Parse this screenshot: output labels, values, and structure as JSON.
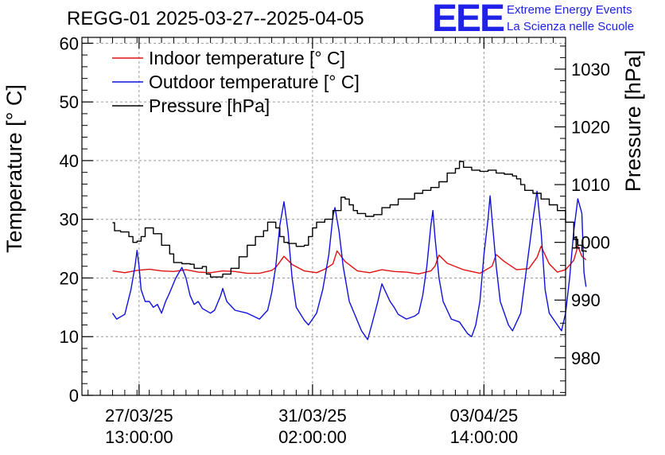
{
  "header": {
    "title": "REGG-01 2025-03-27--2025-04-05",
    "logo_text": "EEE",
    "logo_line1": "Extreme Energy Events",
    "logo_line2": "La Scienza nelle Scuole"
  },
  "colors": {
    "indoor": "#e01010",
    "outdoor": "#1010e0",
    "pressure": "#000000",
    "grid": "#9a9a9a",
    "logo": "#1f22e6"
  },
  "chart_data": {
    "type": "line",
    "title": "REGG-01 2025-03-27--2025-04-05",
    "xlabel": "",
    "ylabel": "Temperature [° C]",
    "y2label": "Pressure [hPa]",
    "x_unit": "hours since 27/03/25 00:00",
    "xlim": [
      -15,
      222
    ],
    "ylim": [
      0,
      61
    ],
    "y2lim": [
      973.5,
      1035.5
    ],
    "grid": true,
    "legend_position": "top-left",
    "x_ticks": [
      {
        "x": 13,
        "line1": "27/03/25",
        "line2": "13:00:00"
      },
      {
        "x": 98,
        "line1": "31/03/25",
        "line2": "02:00:00"
      },
      {
        "x": 182,
        "line1": "03/04/25",
        "line2": "14:00:00"
      }
    ],
    "y_ticks": [
      0,
      10,
      20,
      30,
      40,
      50,
      60
    ],
    "y2_ticks": [
      980,
      990,
      1000,
      1010,
      1020,
      1030
    ],
    "series": [
      {
        "name": "Indoor temperature [° C]",
        "axis": "left",
        "points": [
          [
            0,
            21.2
          ],
          [
            6,
            20.9
          ],
          [
            12,
            21.3
          ],
          [
            18,
            21.5
          ],
          [
            24,
            21.2
          ],
          [
            30,
            21.1
          ],
          [
            36,
            21.4
          ],
          [
            42,
            21.0
          ],
          [
            48,
            20.9
          ],
          [
            54,
            21.2
          ],
          [
            60,
            21.1
          ],
          [
            66,
            20.8
          ],
          [
            72,
            20.8
          ],
          [
            78,
            21.3
          ],
          [
            80,
            21.8
          ],
          [
            84,
            23.7
          ],
          [
            88,
            22.3
          ],
          [
            94,
            21.2
          ],
          [
            100,
            20.9
          ],
          [
            104,
            21.5
          ],
          [
            108,
            22.4
          ],
          [
            110,
            24.6
          ],
          [
            114,
            22.8
          ],
          [
            120,
            21.2
          ],
          [
            126,
            20.9
          ],
          [
            132,
            21.4
          ],
          [
            138,
            21.1
          ],
          [
            144,
            21.0
          ],
          [
            150,
            20.7
          ],
          [
            156,
            21.2
          ],
          [
            158,
            22.0
          ],
          [
            160,
            23.9
          ],
          [
            164,
            22.5
          ],
          [
            172,
            21.4
          ],
          [
            180,
            20.8
          ],
          [
            186,
            22.0
          ],
          [
            188,
            24.0
          ],
          [
            192,
            22.8
          ],
          [
            198,
            21.4
          ],
          [
            204,
            21.6
          ],
          [
            208,
            23.5
          ],
          [
            210,
            25.4
          ],
          [
            214,
            22.4
          ],
          [
            218,
            21.0
          ],
          [
            222,
            21.4
          ],
          [
            226,
            23.0
          ],
          [
            228,
            25.4
          ],
          [
            230,
            23.7
          ],
          [
            232,
            23.1
          ]
        ]
      },
      {
        "name": "Outdoor temperature [° C]",
        "axis": "left",
        "points": [
          [
            0,
            14.0
          ],
          [
            2,
            13.0
          ],
          [
            6,
            13.8
          ],
          [
            9,
            18.0
          ],
          [
            11,
            22.0
          ],
          [
            12,
            24.7
          ],
          [
            13,
            22.0
          ],
          [
            14,
            18.0
          ],
          [
            16,
            16.0
          ],
          [
            18,
            16.0
          ],
          [
            20,
            15.0
          ],
          [
            22,
            15.5
          ],
          [
            24,
            14.0
          ],
          [
            26,
            16.0
          ],
          [
            28,
            17.5
          ],
          [
            31,
            20.0
          ],
          [
            34,
            21.8
          ],
          [
            36,
            20.0
          ],
          [
            38,
            17.0
          ],
          [
            40,
            15.5
          ],
          [
            42,
            16.0
          ],
          [
            44,
            14.8
          ],
          [
            48,
            14.0
          ],
          [
            50,
            14.5
          ],
          [
            53,
            17.0
          ],
          [
            54,
            18.2
          ],
          [
            56,
            16.0
          ],
          [
            60,
            14.5
          ],
          [
            66,
            14.0
          ],
          [
            72,
            13.0
          ],
          [
            76,
            14.5
          ],
          [
            78,
            17.5
          ],
          [
            80,
            22.0
          ],
          [
            82,
            29.0
          ],
          [
            84,
            33.0
          ],
          [
            86,
            28.0
          ],
          [
            88,
            20.0
          ],
          [
            90,
            15.0
          ],
          [
            94,
            12.8
          ],
          [
            96,
            12.0
          ],
          [
            100,
            14.0
          ],
          [
            103,
            18.0
          ],
          [
            106,
            24.0
          ],
          [
            108,
            30.5
          ],
          [
            109,
            32.0
          ],
          [
            111,
            28.0
          ],
          [
            113,
            22.0
          ],
          [
            116,
            16.0
          ],
          [
            119,
            13.5
          ],
          [
            122,
            11.0
          ],
          [
            124,
            10.0
          ],
          [
            125,
            9.5
          ],
          [
            127,
            12.0
          ],
          [
            130,
            16.0
          ],
          [
            132,
            19.0
          ],
          [
            134,
            17.5
          ],
          [
            136,
            16.0
          ],
          [
            138,
            15.0
          ],
          [
            140,
            13.8
          ],
          [
            144,
            13.0
          ],
          [
            148,
            13.5
          ],
          [
            150,
            14.0
          ],
          [
            152,
            17.0
          ],
          [
            154,
            22.0
          ],
          [
            156,
            29.0
          ],
          [
            157,
            31.5
          ],
          [
            158,
            27.0
          ],
          [
            160,
            20.0
          ],
          [
            162,
            16.0
          ],
          [
            164,
            14.5
          ],
          [
            166,
            13.0
          ],
          [
            170,
            12.5
          ],
          [
            172,
            11.5
          ],
          [
            174,
            10.5
          ],
          [
            176,
            10.0
          ],
          [
            178,
            12.0
          ],
          [
            180,
            16.0
          ],
          [
            182,
            24.0
          ],
          [
            184,
            30.0
          ],
          [
            185,
            34.0
          ],
          [
            186,
            30.0
          ],
          [
            188,
            22.0
          ],
          [
            190,
            16.0
          ],
          [
            194,
            12.0
          ],
          [
            196,
            11.0
          ],
          [
            200,
            14.0
          ],
          [
            203,
            22.0
          ],
          [
            206,
            30.0
          ],
          [
            208,
            34.8
          ],
          [
            210,
            28.0
          ],
          [
            212,
            18.0
          ],
          [
            214,
            14.0
          ],
          [
            218,
            12.0
          ],
          [
            220,
            11.0
          ],
          [
            222,
            14.0
          ],
          [
            224,
            20.0
          ],
          [
            226,
            28.0
          ],
          [
            228,
            33.5
          ],
          [
            230,
            31.0
          ],
          [
            231,
            21.0
          ],
          [
            232,
            18.5
          ]
        ]
      },
      {
        "name": "Pressure [hPa]",
        "axis": "right",
        "points": [
          [
            0,
            1003.4
          ],
          [
            1,
            1002.0
          ],
          [
            4,
            1001.8
          ],
          [
            8,
            1001.0
          ],
          [
            10,
            1000.0
          ],
          [
            12,
            1000.2
          ],
          [
            14,
            1001.0
          ],
          [
            16,
            1002.5
          ],
          [
            20,
            1001.5
          ],
          [
            24,
            999.5
          ],
          [
            28,
            998.0
          ],
          [
            30,
            996.5
          ],
          [
            34,
            996.3
          ],
          [
            38,
            996.2
          ],
          [
            40,
            995.5
          ],
          [
            44,
            995.8
          ],
          [
            46,
            994.5
          ],
          [
            48,
            994.0
          ],
          [
            52,
            994.0
          ],
          [
            54,
            994.5
          ],
          [
            58,
            995.5
          ],
          [
            62,
            997.5
          ],
          [
            66,
            999.5
          ],
          [
            70,
            1001.0
          ],
          [
            74,
            1002.0
          ],
          [
            76,
            1003.5
          ],
          [
            78,
            1003.5
          ],
          [
            80,
            1002.5
          ],
          [
            82,
            1001.0
          ],
          [
            84,
            1000.0
          ],
          [
            86,
            999.8
          ],
          [
            90,
            999.3
          ],
          [
            94,
            999.5
          ],
          [
            96,
            1001.0
          ],
          [
            98,
            1002.5
          ],
          [
            100,
            1003.5
          ],
          [
            104,
            1004.0
          ],
          [
            108,
            1005.5
          ],
          [
            112,
            1007.8
          ],
          [
            114,
            1007.5
          ],
          [
            116,
            1006.5
          ],
          [
            118,
            1005.5
          ],
          [
            120,
            1005.0
          ],
          [
            124,
            1004.5
          ],
          [
            128,
            1004.8
          ],
          [
            132,
            1006.0
          ],
          [
            136,
            1006.5
          ],
          [
            140,
            1007.5
          ],
          [
            144,
            1007.5
          ],
          [
            148,
            1008.5
          ],
          [
            152,
            1009.0
          ],
          [
            156,
            1009.5
          ],
          [
            160,
            1010.5
          ],
          [
            164,
            1012.0
          ],
          [
            168,
            1012.8
          ],
          [
            170,
            1014.0
          ],
          [
            172,
            1013.0
          ],
          [
            176,
            1012.5
          ],
          [
            180,
            1012.3
          ],
          [
            184,
            1012.5
          ],
          [
            188,
            1012.0
          ],
          [
            192,
            1011.8
          ],
          [
            196,
            1011.5
          ],
          [
            198,
            1011.0
          ],
          [
            200,
            1010.0
          ],
          [
            202,
            1009.0
          ],
          [
            206,
            1008.5
          ],
          [
            210,
            1007.5
          ],
          [
            214,
            1006.5
          ],
          [
            218,
            1005.5
          ],
          [
            222,
            1003.5
          ],
          [
            226,
            1000.5
          ],
          [
            228,
            999.5
          ],
          [
            230,
            998.5
          ],
          [
            232,
            998.3
          ]
        ]
      }
    ]
  }
}
